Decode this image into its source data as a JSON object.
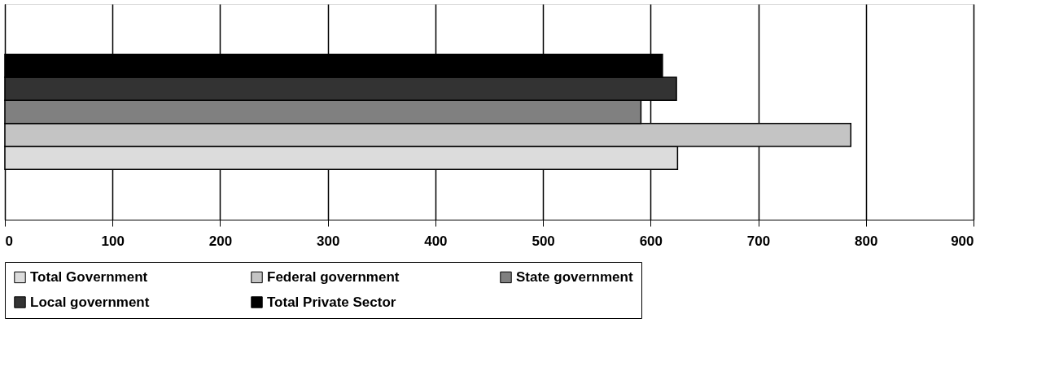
{
  "chart_data": {
    "type": "bar",
    "orientation": "horizontal",
    "categories": [
      null
    ],
    "series": [
      {
        "name": "Total  Government",
        "color": "#dcdcdc",
        "values": [
          625
        ]
      },
      {
        "name": "Federal government",
        "color": "#c4c4c4",
        "values": [
          786
        ]
      },
      {
        "name": "State government",
        "color": "#808080",
        "values": [
          591
        ]
      },
      {
        "name": "Local government",
        "color": "#333333",
        "values": [
          624
        ]
      },
      {
        "name": "Total  Private Sector",
        "color": "#000000",
        "values": [
          611
        ]
      }
    ],
    "xlim": [
      0,
      900
    ],
    "xticks": [
      0,
      100,
      200,
      300,
      400,
      500,
      600,
      700,
      800,
      900
    ],
    "grid": "x",
    "legend": "bottom"
  }
}
